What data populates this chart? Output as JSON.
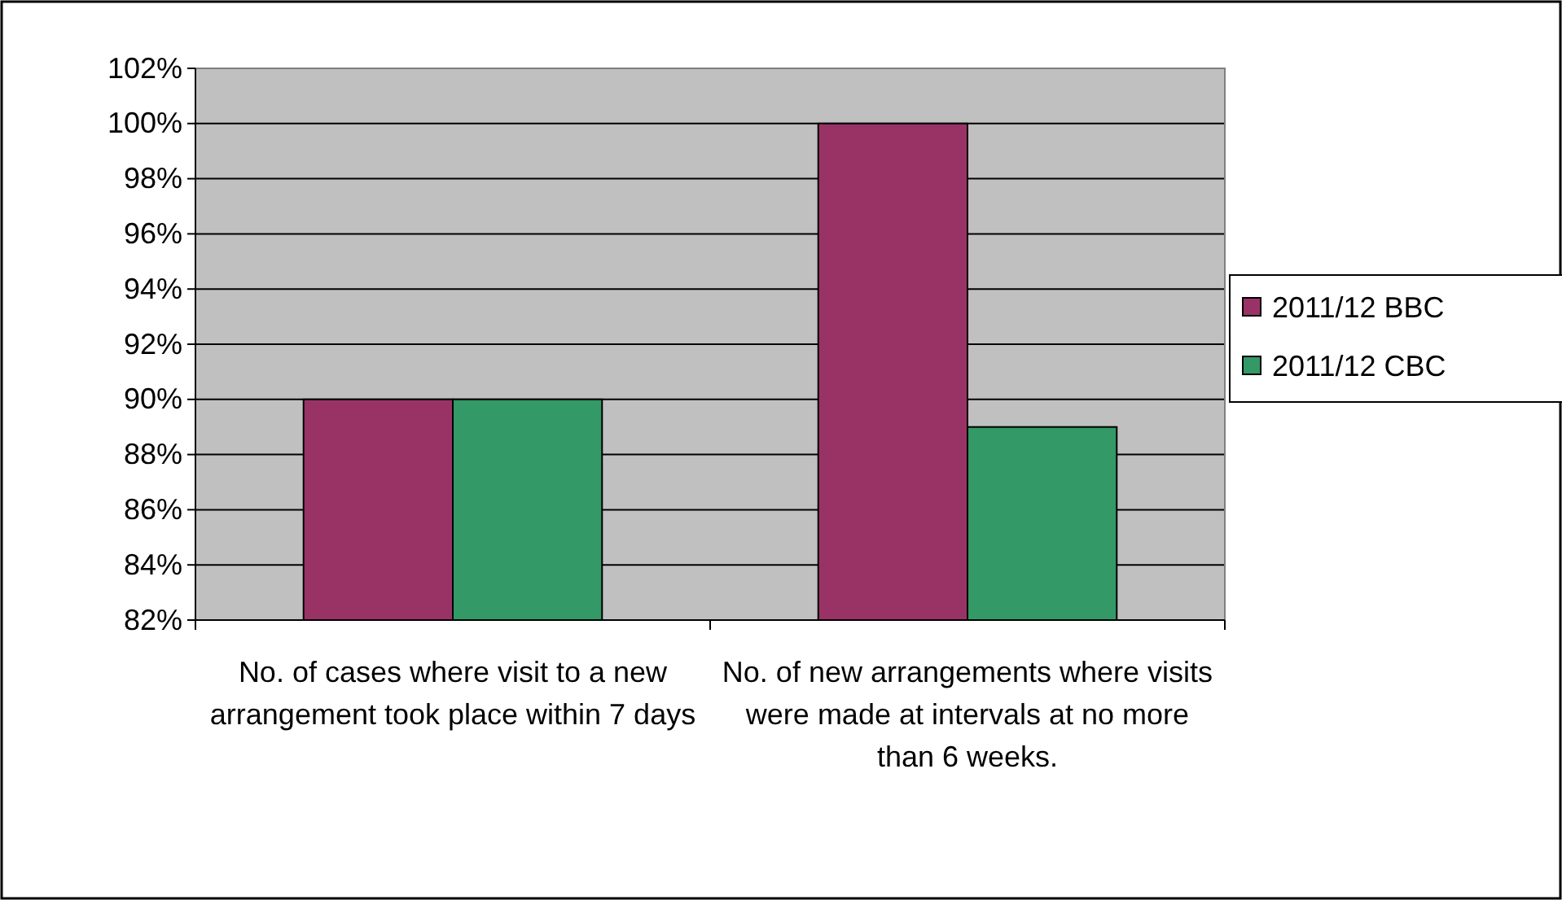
{
  "chart_data": {
    "type": "bar",
    "categories": [
      "No. of cases where visit to a new arrangement took place within 7 days",
      "No. of new arrangements where visits were made at intervals at no more than 6 weeks."
    ],
    "series": [
      {
        "name": "2011/12 BBC",
        "color": "#993366",
        "values": [
          90,
          100
        ]
      },
      {
        "name": "2011/12 CBC",
        "color": "#339966",
        "values": [
          90,
          89
        ]
      }
    ],
    "ylim": [
      82,
      102
    ],
    "yticks": [
      {
        "value": 82,
        "label": "82%"
      },
      {
        "value": 84,
        "label": "84%"
      },
      {
        "value": 86,
        "label": "86%"
      },
      {
        "value": 88,
        "label": "88%"
      },
      {
        "value": 90,
        "label": "90%"
      },
      {
        "value": 92,
        "label": "92%"
      },
      {
        "value": 94,
        "label": "94%"
      },
      {
        "value": 96,
        "label": "96%"
      },
      {
        "value": 98,
        "label": "98%"
      },
      {
        "value": 100,
        "label": "100%"
      },
      {
        "value": 102,
        "label": "102%"
      }
    ],
    "grid": "y",
    "legend": "right"
  }
}
